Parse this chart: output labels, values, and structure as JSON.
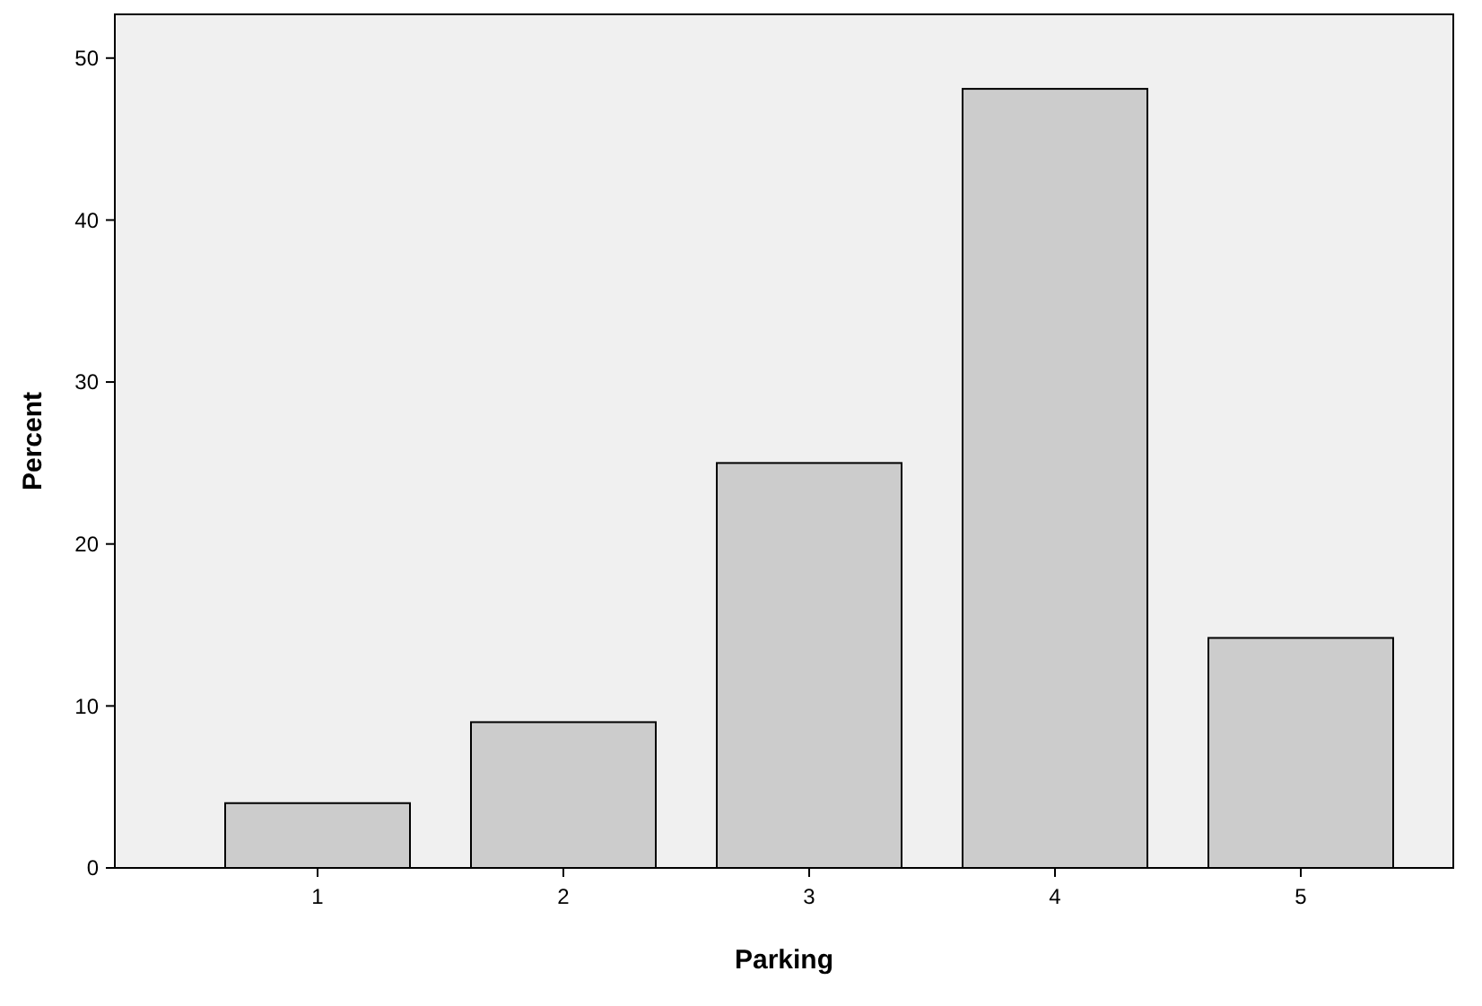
{
  "chart_data": {
    "type": "bar",
    "xlabel": "Parking",
    "ylabel": "Percent",
    "categories": [
      "1",
      "2",
      "3",
      "4",
      "5"
    ],
    "values": [
      4,
      9,
      25,
      48.1,
      14.2
    ],
    "color": "#cccccc",
    "ylim": [
      0,
      52.7
    ],
    "yticks": [
      0,
      10,
      20,
      30,
      40,
      50
    ],
    "grid": false
  }
}
